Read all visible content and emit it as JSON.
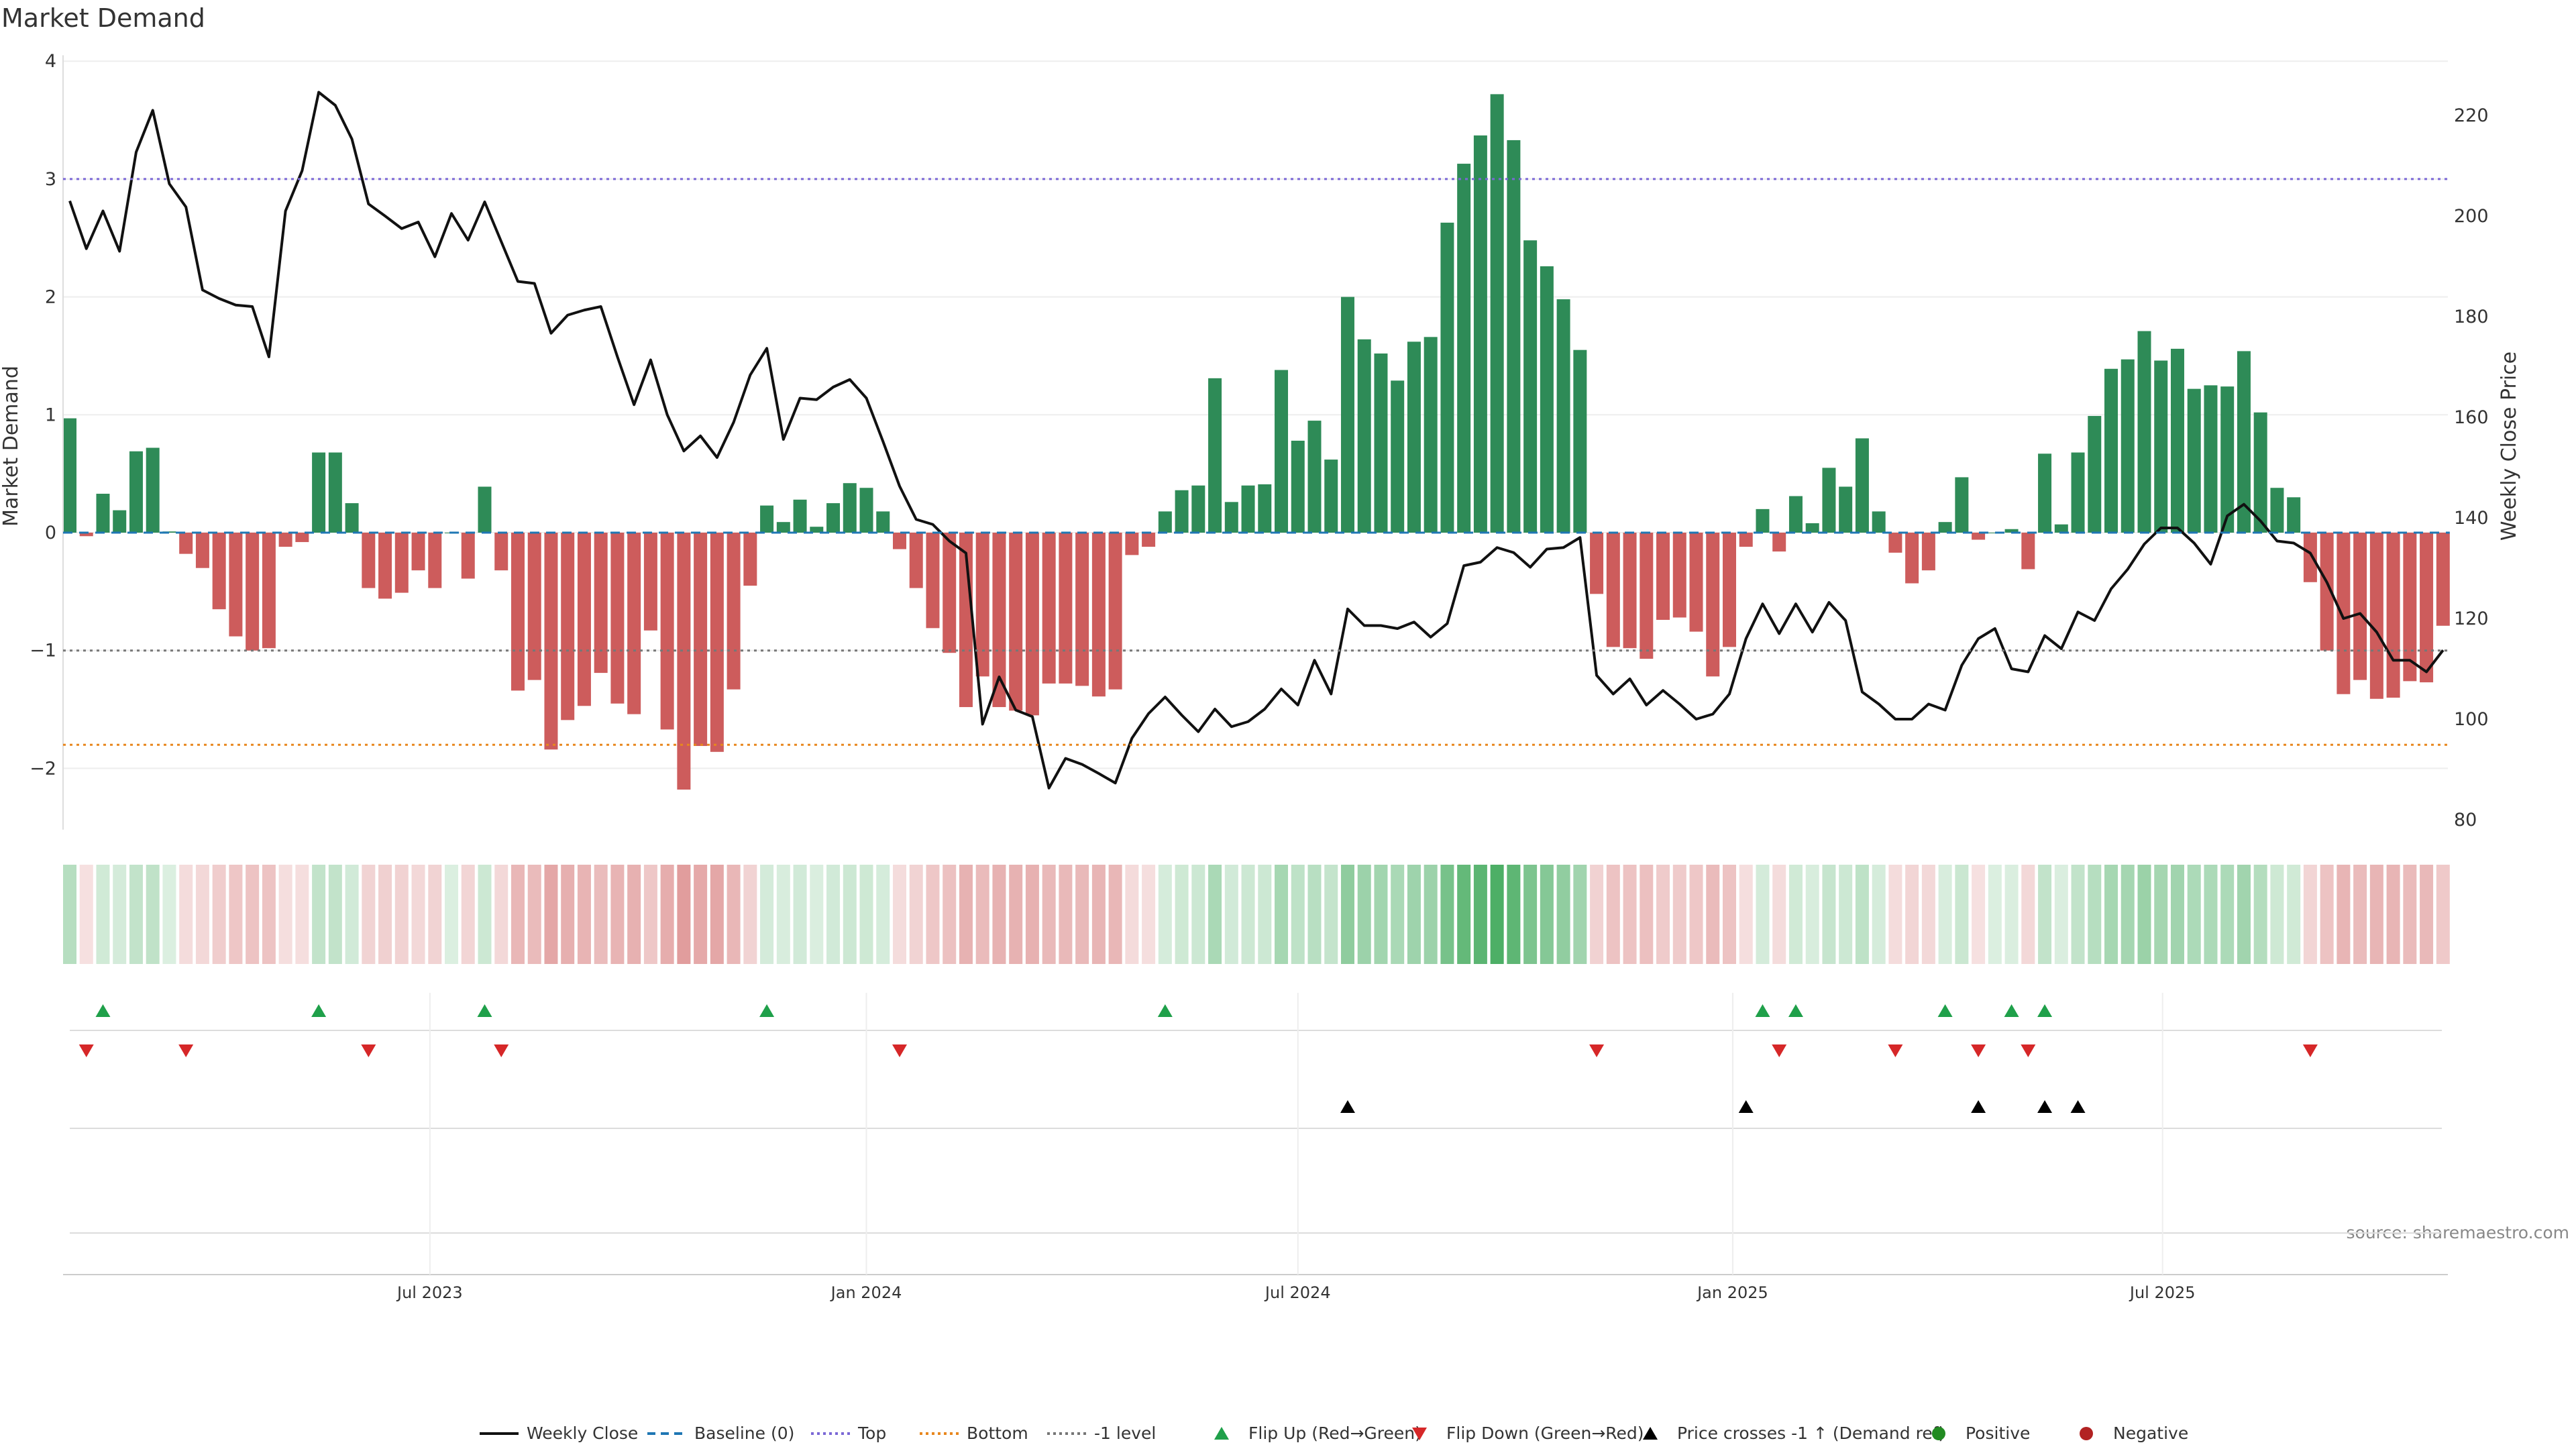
{
  "chart_data": {
    "type": "bar+line",
    "title": "Market Demand",
    "ylabel": "Market Demand",
    "y2label": "Weekly Close Price",
    "ylim": [
      -2.52,
      4.05
    ],
    "y2lim": [
      80,
      230
    ],
    "yticks": [
      4,
      3,
      2,
      1,
      0,
      -1,
      -2
    ],
    "ytick_labels": [
      "4",
      "3",
      "2",
      "1",
      "0",
      "−1",
      "−2"
    ],
    "y2ticks": [
      80,
      100,
      120,
      140,
      160,
      180,
      200,
      220
    ],
    "y2tick_labels": [
      "80",
      "100",
      "120",
      "140",
      "160",
      "180",
      "200",
      "220"
    ],
    "xticks": [
      {
        "label": "Jul 2023",
        "index": 21.7
      },
      {
        "label": "Jan 2024",
        "index": 48
      },
      {
        "label": "Jul 2024",
        "index": 74
      },
      {
        "label": "Jan 2025",
        "index": 100.2
      },
      {
        "label": "Jul 2025",
        "index": 126.1
      }
    ],
    "reference_lines": {
      "baseline": 0,
      "top": 3,
      "minus_one": -1,
      "bottom": -1.8
    },
    "demand": [
      0.97,
      -0.03,
      0.33,
      0.19,
      0.69,
      0.72,
      0.01,
      -0.18,
      -0.3,
      -0.65,
      -0.88,
      -1.0,
      -0.98,
      -0.12,
      -0.08,
      0.68,
      0.68,
      0.25,
      -0.47,
      -0.56,
      -0.51,
      -0.32,
      -0.47,
      0.0,
      -0.39,
      0.39,
      -0.32,
      -1.34,
      -1.25,
      -1.84,
      -1.59,
      -1.47,
      -1.19,
      -1.45,
      -1.54,
      -0.83,
      -1.67,
      -2.18,
      -1.81,
      -1.86,
      -1.33,
      -0.45,
      0.23,
      0.09,
      0.28,
      0.05,
      0.25,
      0.42,
      0.38,
      0.18,
      -0.14,
      -0.47,
      -0.81,
      -1.02,
      -1.48,
      -1.22,
      -1.48,
      -1.51,
      -1.55,
      -1.28,
      -1.28,
      -1.3,
      -1.39,
      -1.33,
      -0.19,
      -0.12,
      0.18,
      0.36,
      0.4,
      1.31,
      0.26,
      0.4,
      0.41,
      1.38,
      0.78,
      0.95,
      0.62,
      2.0,
      1.64,
      1.52,
      1.29,
      1.62,
      1.66,
      2.63,
      3.13,
      3.37,
      3.72,
      3.33,
      2.48,
      2.26,
      1.98,
      1.55,
      -0.52,
      -0.97,
      -0.98,
      -1.07,
      -0.74,
      -0.72,
      -0.84,
      -1.22,
      -0.97,
      -0.12,
      0.2,
      -0.16,
      0.31,
      0.08,
      0.55,
      0.39,
      0.8,
      0.18,
      -0.17,
      -0.43,
      -0.32,
      0.09,
      0.47,
      -0.06,
      0.0,
      0.03,
      -0.31,
      0.67,
      0.07,
      0.68,
      0.99,
      1.39,
      1.47,
      1.71,
      1.46,
      1.56,
      1.22,
      1.25,
      1.24,
      1.54,
      1.02,
      0.38,
      0.3,
      -0.42,
      -1.0,
      -1.37,
      -1.25,
      -1.41,
      -1.4,
      -1.26,
      -1.27,
      -0.79
    ],
    "weekly_close": [
      203,
      193.5,
      201,
      193,
      212.7,
      221,
      206.4,
      201.8,
      185.3,
      183.6,
      182.3,
      182,
      172,
      201,
      209,
      224.6,
      222,
      215.3,
      202.4,
      200,
      197.5,
      198.8,
      191.9,
      200.5,
      195.2,
      202.8,
      194.9,
      187,
      186.6,
      176.7,
      180.3,
      181.3,
      182,
      172,
      162.5,
      171.4,
      160.5,
      153.3,
      156.3,
      152,
      159,
      168.4,
      173.7,
      155.6,
      163.8,
      163.5,
      166,
      167.5,
      163.8,
      155.2,
      146.3,
      139.7,
      138.7,
      135.4,
      133,
      99,
      108.4,
      101.8,
      100.5,
      86.3,
      92.2,
      91,
      89.2,
      87.3,
      96.2,
      101.1,
      104.4,
      100.8,
      97.5,
      102,
      98.5,
      99.5,
      102,
      106,
      102.8,
      111.7,
      105,
      121.9,
      118.6,
      118.6,
      118,
      119.3,
      116.3,
      119,
      130.5,
      131.2,
      134.1,
      133.1,
      130.2,
      133.8,
      134.1,
      136.1,
      108.7,
      105,
      108,
      102.8,
      105.7,
      103,
      100,
      101,
      105,
      116,
      122.9,
      117,
      122.9,
      117.3,
      123.2,
      119.6,
      105.4,
      103,
      100,
      100,
      103,
      101.8,
      110.7,
      116,
      118,
      110,
      109.4,
      116.6,
      114,
      121.3,
      119.6,
      125.9,
      129.8,
      134.8,
      138,
      138,
      135,
      130.8,
      140.4,
      142.7,
      139.4,
      135.4,
      135,
      133,
      127.2,
      120,
      121,
      117.3,
      111.7,
      111.7,
      109.4,
      113.7
    ],
    "flip_up_indices": [
      2,
      15,
      25,
      42,
      66,
      102,
      104,
      113,
      117,
      119
    ],
    "flip_down_indices": [
      1,
      7,
      18,
      26,
      50,
      92,
      103,
      110,
      115,
      118,
      135
    ],
    "price_cross_indices": [
      77,
      101,
      115,
      119,
      121
    ],
    "legend": [
      "Weekly Close",
      "Baseline (0)",
      "Top",
      "Bottom",
      "-1 level",
      "Flip Up (Red→Green)",
      "Flip Down (Green→Red)",
      "Price crosses -1 ↑ (Demand ref)",
      "Positive",
      "Negative"
    ],
    "legend_placement": "bottom-center",
    "source": "source: sharemaestro.com"
  },
  "colors": {
    "positive": "#2e8b57",
    "negative": "#cd5c5c",
    "line": "#111111",
    "baseline": "#1f77b4",
    "top": "#7b68d6",
    "bottom": "#e8871e",
    "minus_one": "#777777",
    "flip_up": "#1fa04a",
    "flip_down": "#d62728",
    "cross": "#000000",
    "positive_dot": "#228b22",
    "negative_dot": "#b22222"
  }
}
